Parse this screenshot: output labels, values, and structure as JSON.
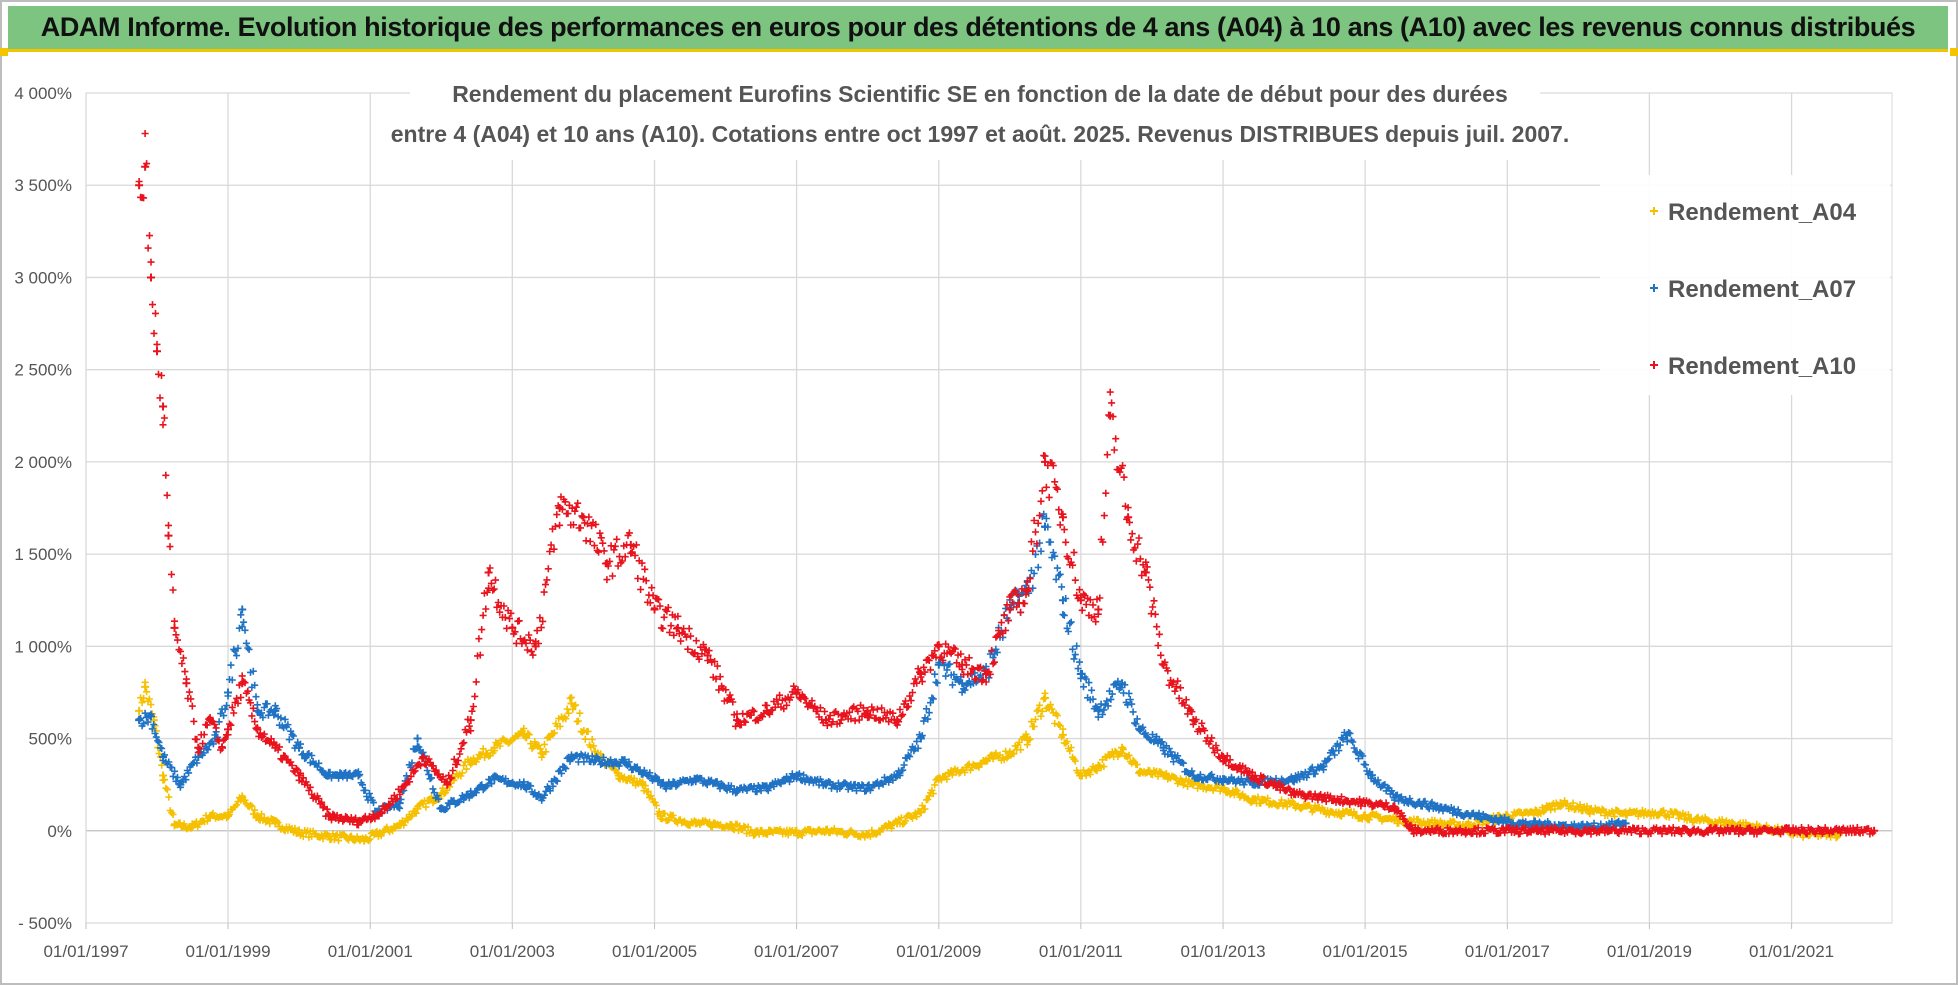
{
  "banner": {
    "title": "ADAM Informe. Evolution historique des performances en euros pour des détentions de 4 ans (A04) à 10 ans (A10) avec les revenus connus distribués"
  },
  "colors": {
    "a04": "#f5c000",
    "a07": "#1f72c4",
    "a10": "#e8131c",
    "banner": "#7cc47f",
    "banner_border": "#f2c500"
  },
  "chart_data": {
    "type": "scatter",
    "title_line1": "Rendement du placement Eurofins Scientific SE en fonction de la date de début pour des durées",
    "title_line2": "entre 4 (A04) et 10 ans (A10).  Cotations entre oct 1997 et août. 2025. Revenus DISTRIBUES depuis juil. 2007.",
    "xlabel": "",
    "ylabel": "",
    "x_range": [
      "1997-01-01",
      "2022-06-01"
    ],
    "y_range": [
      -500,
      4000
    ],
    "x_ticks": [
      "01/01/1997",
      "01/01/1999",
      "01/01/2001",
      "01/01/2003",
      "01/01/2005",
      "01/01/2007",
      "01/01/2009",
      "01/01/2011",
      "01/01/2013",
      "01/01/2015",
      "01/01/2017",
      "01/01/2019",
      "01/01/2021"
    ],
    "y_ticks": [
      {
        "value": 4000,
        "label": "4 000%"
      },
      {
        "value": 3500,
        "label": "3 500%"
      },
      {
        "value": 3000,
        "label": "3 000%"
      },
      {
        "value": 2500,
        "label": "2 500%"
      },
      {
        "value": 2000,
        "label": "2 000%"
      },
      {
        "value": 1500,
        "label": "1 500%"
      },
      {
        "value": 1000,
        "label": "1 000%"
      },
      {
        "value": 500,
        "label": "500%"
      },
      {
        "value": 0,
        "label": "0%"
      },
      {
        "value": -500,
        "label": "- 500%"
      }
    ],
    "grid": "horizontal and vertical",
    "legend_position": "top-right",
    "marker": "plus",
    "series": [
      {
        "name": "Rendement_A04",
        "color": "#f5c000",
        "points": [
          [
            "1997-10-01",
            650
          ],
          [
            "1997-11-01",
            780
          ],
          [
            "1997-12-15",
            600
          ],
          [
            "1998-02-01",
            300
          ],
          [
            "1998-04-01",
            30
          ],
          [
            "1998-07-01",
            20
          ],
          [
            "1998-10-01",
            80
          ],
          [
            "1999-01-01",
            80
          ],
          [
            "1999-03-15",
            180
          ],
          [
            "1999-06-01",
            80
          ],
          [
            "1999-09-01",
            40
          ],
          [
            "2000-01-01",
            -10
          ],
          [
            "2000-06-01",
            -30
          ],
          [
            "2000-12-01",
            -50
          ],
          [
            "2001-06-01",
            30
          ],
          [
            "2001-09-01",
            120
          ],
          [
            "2002-01-01",
            200
          ],
          [
            "2002-06-01",
            380
          ],
          [
            "2002-10-01",
            450
          ],
          [
            "2003-03-01",
            520
          ],
          [
            "2003-06-01",
            420
          ],
          [
            "2003-11-01",
            690
          ],
          [
            "2004-03-01",
            430
          ],
          [
            "2004-07-01",
            300
          ],
          [
            "2004-11-01",
            250
          ],
          [
            "2005-02-01",
            80
          ],
          [
            "2005-08-01",
            40
          ],
          [
            "2006-02-01",
            30
          ],
          [
            "2006-06-01",
            -10
          ],
          [
            "2007-01-01",
            -10
          ],
          [
            "2007-06-01",
            0
          ],
          [
            "2008-01-01",
            -20
          ],
          [
            "2008-06-01",
            40
          ],
          [
            "2008-10-01",
            100
          ],
          [
            "2009-01-01",
            280
          ],
          [
            "2009-04-01",
            320
          ],
          [
            "2009-09-01",
            380
          ],
          [
            "2010-01-01",
            420
          ],
          [
            "2010-04-01",
            500
          ],
          [
            "2010-07-01",
            720
          ],
          [
            "2010-10-01",
            520
          ],
          [
            "2011-01-01",
            300
          ],
          [
            "2011-04-01",
            350
          ],
          [
            "2011-08-01",
            450
          ],
          [
            "2011-11-01",
            320
          ],
          [
            "2012-03-01",
            300
          ],
          [
            "2012-08-01",
            250
          ],
          [
            "2013-01-01",
            230
          ],
          [
            "2013-06-01",
            170
          ],
          [
            "2014-01-01",
            140
          ],
          [
            "2014-06-01",
            110
          ],
          [
            "2015-01-01",
            80
          ],
          [
            "2015-06-01",
            60
          ],
          [
            "2016-01-01",
            40
          ],
          [
            "2016-06-01",
            30
          ],
          [
            "2017-01-01",
            80
          ],
          [
            "2017-06-01",
            100
          ],
          [
            "2017-10-01",
            150
          ],
          [
            "2018-03-01",
            110
          ],
          [
            "2018-09-01",
            90
          ],
          [
            "2019-03-01",
            100
          ],
          [
            "2019-09-01",
            60
          ],
          [
            "2020-03-01",
            40
          ],
          [
            "2020-09-01",
            10
          ],
          [
            "2021-03-01",
            -20
          ],
          [
            "2021-09-01",
            -20
          ]
        ]
      },
      {
        "name": "Rendement_A07",
        "color": "#1f72c4",
        "points": [
          [
            "1997-10-01",
            600
          ],
          [
            "1997-12-01",
            620
          ],
          [
            "1998-02-01",
            400
          ],
          [
            "1998-05-01",
            250
          ],
          [
            "1998-08-01",
            400
          ],
          [
            "1998-11-01",
            500
          ],
          [
            "1999-01-01",
            750
          ],
          [
            "1999-03-15",
            1200
          ],
          [
            "1999-06-01",
            650
          ],
          [
            "1999-09-01",
            650
          ],
          [
            "2000-01-01",
            450
          ],
          [
            "2000-06-01",
            300
          ],
          [
            "2000-11-01",
            300
          ],
          [
            "2001-02-01",
            100
          ],
          [
            "2001-06-01",
            150
          ],
          [
            "2001-09-01",
            500
          ],
          [
            "2002-01-01",
            120
          ],
          [
            "2002-06-01",
            200
          ],
          [
            "2002-10-01",
            280
          ],
          [
            "2003-03-01",
            250
          ],
          [
            "2003-06-01",
            180
          ],
          [
            "2003-11-01",
            400
          ],
          [
            "2004-03-01",
            380
          ],
          [
            "2004-08-01",
            370
          ],
          [
            "2004-12-01",
            300
          ],
          [
            "2005-03-01",
            240
          ],
          [
            "2005-08-01",
            280
          ],
          [
            "2006-03-01",
            220
          ],
          [
            "2006-08-01",
            230
          ],
          [
            "2007-01-01",
            300
          ],
          [
            "2007-06-01",
            250
          ],
          [
            "2008-01-01",
            230
          ],
          [
            "2008-06-01",
            300
          ],
          [
            "2008-10-01",
            500
          ],
          [
            "2009-01-01",
            900
          ],
          [
            "2009-05-01",
            800
          ],
          [
            "2009-09-01",
            850
          ],
          [
            "2010-01-01",
            1200
          ],
          [
            "2010-04-01",
            1300
          ],
          [
            "2010-07-01",
            1650
          ],
          [
            "2010-10-01",
            1250
          ],
          [
            "2011-01-01",
            850
          ],
          [
            "2011-04-01",
            650
          ],
          [
            "2011-08-01",
            800
          ],
          [
            "2011-11-01",
            550
          ],
          [
            "2012-03-01",
            450
          ],
          [
            "2012-08-01",
            300
          ],
          [
            "2013-01-01",
            280
          ],
          [
            "2013-06-01",
            260
          ],
          [
            "2014-01-01",
            280
          ],
          [
            "2014-06-01",
            350
          ],
          [
            "2014-10-01",
            520
          ],
          [
            "2015-02-01",
            300
          ],
          [
            "2015-06-01",
            180
          ],
          [
            "2016-01-01",
            130
          ],
          [
            "2016-08-01",
            80
          ],
          [
            "2017-03-01",
            40
          ],
          [
            "2017-09-01",
            30
          ],
          [
            "2018-03-01",
            20
          ],
          [
            "2018-09-01",
            40
          ]
        ]
      },
      {
        "name": "Rendement_A10",
        "color": "#e8131c",
        "points": [
          [
            "1997-10-01",
            3500
          ],
          [
            "1997-11-01",
            3600
          ],
          [
            "1997-12-01",
            3000
          ],
          [
            "1998-01-01",
            2600
          ],
          [
            "1998-02-01",
            2300
          ],
          [
            "1998-03-01",
            1600
          ],
          [
            "1998-04-01",
            1100
          ],
          [
            "1998-06-01",
            800
          ],
          [
            "1998-08-01",
            450
          ],
          [
            "1998-10-01",
            600
          ],
          [
            "1998-12-01",
            450
          ],
          [
            "1999-01-01",
            550
          ],
          [
            "1999-03-15",
            800
          ],
          [
            "1999-06-01",
            550
          ],
          [
            "1999-09-01",
            450
          ],
          [
            "2000-01-01",
            300
          ],
          [
            "2000-06-01",
            80
          ],
          [
            "2000-11-01",
            50
          ],
          [
            "2001-03-01",
            100
          ],
          [
            "2001-07-01",
            250
          ],
          [
            "2001-10-01",
            400
          ],
          [
            "2002-02-01",
            250
          ],
          [
            "2002-06-01",
            600
          ],
          [
            "2002-09-01",
            1400
          ],
          [
            "2003-01-01",
            1100
          ],
          [
            "2003-05-01",
            1000
          ],
          [
            "2003-09-01",
            1750
          ],
          [
            "2004-01-01",
            1700
          ],
          [
            "2004-05-01",
            1450
          ],
          [
            "2004-09-01",
            1550
          ],
          [
            "2005-01-01",
            1200
          ],
          [
            "2005-05-01",
            1100
          ],
          [
            "2005-10-01",
            950
          ],
          [
            "2006-03-01",
            600
          ],
          [
            "2006-08-01",
            650
          ],
          [
            "2007-01-01",
            750
          ],
          [
            "2007-06-01",
            600
          ],
          [
            "2008-01-01",
            650
          ],
          [
            "2008-06-01",
            600
          ],
          [
            "2008-10-01",
            850
          ],
          [
            "2009-01-01",
            1000
          ],
          [
            "2009-05-01",
            900
          ],
          [
            "2009-09-01",
            850
          ],
          [
            "2010-01-01",
            1200
          ],
          [
            "2010-04-01",
            1300
          ],
          [
            "2010-07-01",
            2000
          ],
          [
            "2010-10-01",
            1700
          ],
          [
            "2011-01-01",
            1250
          ],
          [
            "2011-04-01",
            1200
          ],
          [
            "2011-06-01",
            2250
          ],
          [
            "2011-09-01",
            1700
          ],
          [
            "2011-12-01",
            1400
          ],
          [
            "2012-03-01",
            900
          ],
          [
            "2012-08-01",
            600
          ],
          [
            "2013-01-01",
            400
          ],
          [
            "2013-06-01",
            300
          ],
          [
            "2014-01-01",
            200
          ],
          [
            "2014-06-01",
            180
          ],
          [
            "2015-01-01",
            150
          ],
          [
            "2015-06-01",
            130
          ],
          [
            "2015-09-01",
            0
          ],
          [
            "2016-06-01",
            0
          ],
          [
            "2017-06-01",
            0
          ],
          [
            "2018-06-01",
            0
          ],
          [
            "2019-06-01",
            0
          ],
          [
            "2020-06-01",
            0
          ],
          [
            "2021-06-01",
            0
          ],
          [
            "2022-03-01",
            0
          ]
        ]
      }
    ]
  }
}
